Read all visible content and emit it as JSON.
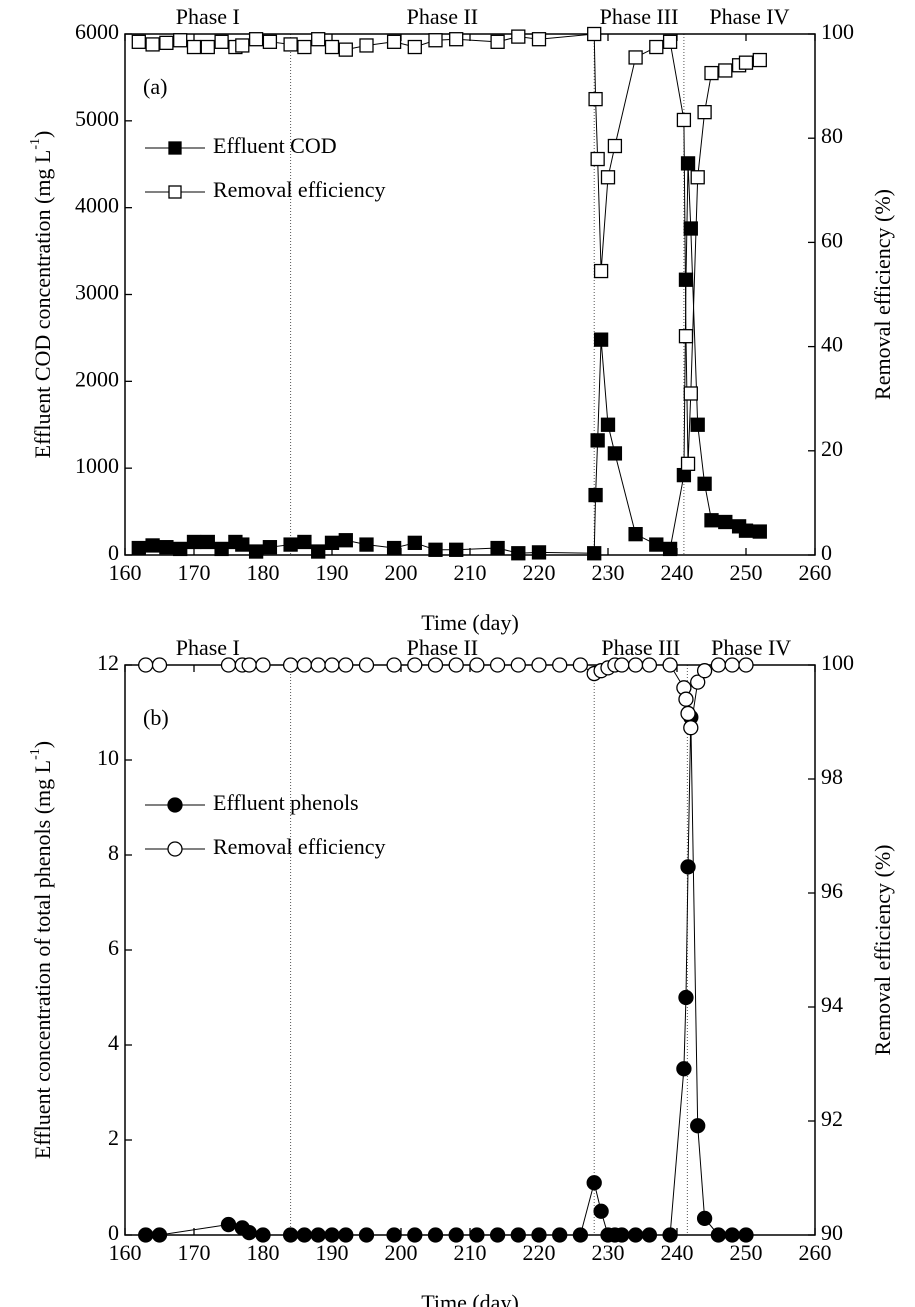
{
  "chart_data": [
    {
      "type": "line",
      "panel_label": "(a)",
      "x_label": "Time (day)",
      "y_label": "Effluent COD concentration (mg L",
      "y_label_sup": "-1",
      "y_label_end": ")",
      "y2_label": "Removal efficiency (%)",
      "phases": [
        "Phase I",
        "Phase II",
        "Phase III",
        "Phase IV"
      ],
      "phase_boundaries": [
        184,
        228,
        241
      ],
      "xlim": [
        160,
        260
      ],
      "xticks": [
        160,
        170,
        180,
        190,
        200,
        210,
        220,
        230,
        240,
        250,
        260
      ],
      "ylim": [
        0,
        6000
      ],
      "yticks": [
        0,
        1000,
        2000,
        3000,
        4000,
        5000,
        6000
      ],
      "y2lim": [
        0,
        100
      ],
      "y2ticks": [
        0,
        20,
        40,
        60,
        80,
        100
      ],
      "x": [
        162,
        164,
        166,
        168,
        170,
        172,
        174,
        176,
        177,
        179,
        181,
        184,
        186,
        188,
        190,
        192,
        195,
        199,
        202,
        205,
        208,
        214,
        217,
        220,
        228,
        228.2,
        228.5,
        229,
        230,
        231,
        234,
        237,
        239,
        241,
        241.3,
        241.6,
        242,
        243,
        244,
        245,
        247,
        249,
        250,
        252
      ],
      "series": [
        {
          "name": "Effluent COD",
          "color": "#000000",
          "marker": "square",
          "fill": "#000000",
          "values": [
            80,
            110,
            90,
            70,
            150,
            150,
            70,
            150,
            120,
            40,
            90,
            120,
            150,
            40,
            140,
            170,
            120,
            80,
            140,
            60,
            60,
            80,
            20,
            30,
            20,
            690,
            1320,
            2480,
            1500,
            1170,
            240,
            120,
            70,
            920,
            3170,
            4510,
            3760,
            1500,
            820,
            400,
            380,
            330,
            280,
            270
          ]
        },
        {
          "name": "Removal efficiency",
          "color": "#000000",
          "marker": "square",
          "fill": "#ffffff",
          "axis": "y2",
          "values": [
            98.5,
            98,
            98.3,
            98.8,
            97.5,
            97.5,
            98.5,
            97.5,
            97.8,
            99,
            98.5,
            98,
            97.5,
            99,
            97.5,
            97,
            97.8,
            98.5,
            97.5,
            98.8,
            99,
            98.5,
            99.5,
            99,
            100,
            87.5,
            76,
            54.5,
            72.5,
            78.5,
            95.5,
            97.5,
            98.5,
            83.5,
            42,
            17.5,
            31,
            72.5,
            85,
            92.5,
            93,
            94,
            94.5,
            95
          ]
        }
      ]
    },
    {
      "type": "line",
      "panel_label": "(b)",
      "x_label": "Time (day)",
      "y_label": "Effluent concentration of total phenols (mg L",
      "y_label_sup": "-1",
      "y_label_end": ")",
      "y2_label": "Removal efficiency (%)",
      "phases": [
        "Phase I",
        "Phase II",
        "Phase III",
        "Phase IV"
      ],
      "phase_boundaries": [
        184,
        228,
        241.5
      ],
      "xlim": [
        160,
        260
      ],
      "xticks": [
        160,
        170,
        180,
        190,
        200,
        210,
        220,
        230,
        240,
        250,
        260
      ],
      "ylim": [
        0,
        12
      ],
      "yticks": [
        0,
        2,
        4,
        6,
        8,
        10,
        12
      ],
      "y2lim": [
        90,
        100
      ],
      "y2ticks": [
        90,
        92,
        94,
        96,
        98,
        100
      ],
      "x": [
        163,
        165,
        175,
        177,
        178,
        180,
        184,
        186,
        188,
        190,
        192,
        195,
        199,
        202,
        205,
        208,
        211,
        214,
        217,
        220,
        223,
        226,
        228,
        229,
        230,
        231,
        232,
        234,
        236,
        239,
        241,
        241.3,
        241.6,
        242,
        243,
        244,
        246,
        248,
        250
      ],
      "series": [
        {
          "name": "Effluent phenols",
          "color": "#000000",
          "marker": "circle",
          "fill": "#000000",
          "values": [
            0,
            0,
            0.22,
            0.15,
            0.05,
            0,
            0,
            0,
            0,
            0,
            0,
            0,
            0,
            0,
            0,
            0,
            0,
            0,
            0,
            0,
            0,
            0,
            1.1,
            0.5,
            0,
            0,
            0,
            0,
            0,
            0,
            3.5,
            5,
            7.75,
            10.9,
            2.3,
            0.35,
            0,
            0,
            0
          ]
        },
        {
          "name": "Removal efficiency",
          "color": "#000000",
          "marker": "circle",
          "fill": "#ffffff",
          "axis": "y2",
          "values": [
            100,
            100,
            100,
            100,
            100,
            100,
            100,
            100,
            100,
            100,
            100,
            100,
            100,
            100,
            100,
            100,
            100,
            100,
            100,
            100,
            100,
            100,
            99.85,
            99.9,
            99.95,
            100,
            100,
            100,
            100,
            100,
            99.6,
            99.4,
            99.15,
            98.9,
            99.7,
            99.9,
            100,
            100,
            100
          ]
        }
      ]
    }
  ]
}
